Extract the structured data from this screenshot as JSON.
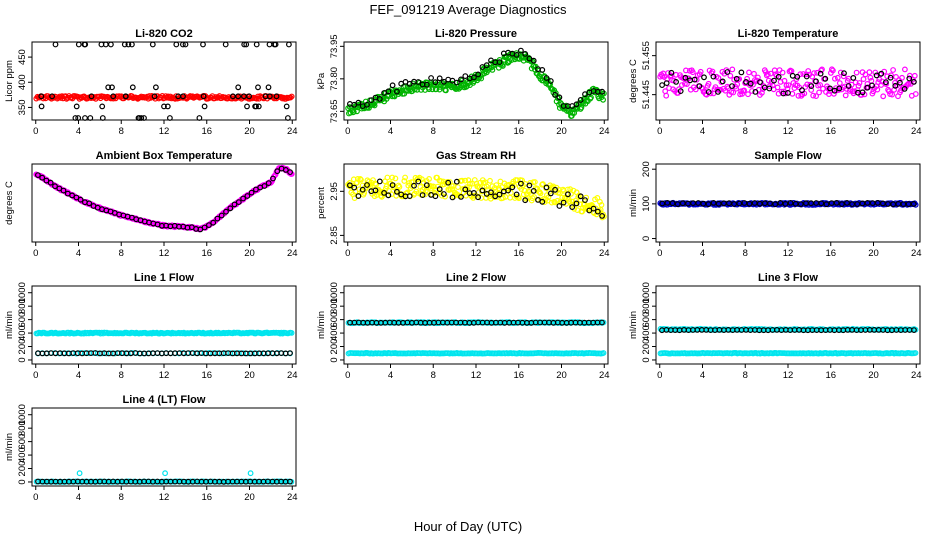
{
  "figure": {
    "title": "FEF_091219  Average Diagnostics",
    "xlabel": "Hour of Day (UTC)"
  },
  "chart_data": [
    {
      "type": "scatter",
      "title": "Li-820 CO2",
      "ylabel": "Licor ppm",
      "xlim": [
        0,
        24
      ],
      "xticks": [
        0,
        4,
        8,
        12,
        16,
        20,
        24
      ],
      "ylim": [
        325,
        480
      ],
      "yticks": [
        350,
        400,
        450
      ],
      "series": [
        {
          "color": "#ff0000",
          "pattern": "band",
          "center": 370,
          "spread": 3,
          "n": 220
        },
        {
          "color": "#000000",
          "pattern": "spikes",
          "levels": [
            325,
            352,
            372,
            390,
            475
          ],
          "n": 70
        }
      ]
    },
    {
      "type": "scatter",
      "title": "Li-820 Pressure",
      "ylabel": "kPa",
      "xlim": [
        0,
        24
      ],
      "xticks": [
        0,
        4,
        8,
        12,
        16,
        20,
        24
      ],
      "ylim": [
        73.61,
        73.97
      ],
      "yticks": [
        73.65,
        73.8,
        73.95
      ],
      "series": [
        {
          "color": "#00b400",
          "pattern": "curve",
          "spread": 0.02,
          "n": 320,
          "curve": {
            "x": [
              0,
              2,
              4,
              6,
              8,
              10,
              12,
              13,
              15,
              16,
              17,
              18,
              19,
              20,
              21,
              22,
              23,
              24
            ],
            "y": [
              73.65,
              73.68,
              73.73,
              73.76,
              73.77,
              73.76,
              73.8,
              73.84,
              73.89,
              73.91,
              73.88,
              73.82,
              73.76,
              73.67,
              73.64,
              73.69,
              73.74,
              73.72
            ]
          }
        },
        {
          "color": "#000000",
          "pattern": "curve",
          "spread": 0.018,
          "n": 60,
          "curve": {
            "x": [
              0,
              2,
              4,
              6,
              8,
              10,
              12,
              13,
              15,
              16,
              17,
              18,
              19,
              20,
              21,
              22,
              23,
              24
            ],
            "y": [
              73.67,
              73.7,
              73.75,
              73.78,
              73.79,
              73.78,
              73.82,
              73.86,
              73.91,
              73.93,
              73.9,
              73.84,
              73.78,
              73.69,
              73.66,
              73.71,
              73.76,
              73.74
            ]
          }
        }
      ]
    },
    {
      "type": "scatter",
      "title": "Li-820 Temperature",
      "ylabel": "degrees C",
      "xlim": [
        0,
        24
      ],
      "xticks": [
        0,
        4,
        8,
        12,
        16,
        20,
        24
      ],
      "ylim": [
        51.4385,
        51.4585
      ],
      "yticks": [
        51.445,
        51.455
      ],
      "series": [
        {
          "color": "#ff00ff",
          "pattern": "band",
          "center": 51.448,
          "spread": 0.0035,
          "n": 260
        },
        {
          "color": "#000000",
          "pattern": "band",
          "center": 51.448,
          "spread": 0.003,
          "n": 55
        }
      ]
    },
    {
      "type": "scatter",
      "title": "Ambient Box Temperature",
      "ylabel": "degrees C",
      "xlim": [
        0,
        24
      ],
      "xticks": [
        0,
        4,
        8,
        12,
        16,
        20,
        24
      ],
      "ylim": [
        51.5,
        58.2
      ],
      "yticks": [],
      "series": [
        {
          "color": "#ff00ff",
          "pattern": "curve",
          "spread": 0.08,
          "n": 300,
          "curve": {
            "x": [
              0,
              1,
              2,
              4,
              6,
              8,
              10,
              12,
              14,
              15.5,
              16.5,
              18,
              20,
              21,
              22,
              22.8,
              23.5,
              24
            ],
            "y": [
              57.4,
              56.8,
              56.2,
              55.2,
              54.4,
              53.8,
              53.3,
              52.9,
              52.8,
              52.6,
              53.1,
              54.3,
              55.6,
              56.2,
              56.6,
              57.9,
              57.7,
              57.3
            ]
          }
        },
        {
          "color": "#000000",
          "pattern": "curve",
          "spread": 0.05,
          "n": 60,
          "curve": {
            "x": [
              0,
              1,
              2,
              4,
              6,
              8,
              10,
              12,
              14,
              15.5,
              16.5,
              18,
              20,
              21,
              22,
              22.8,
              23.5,
              24
            ],
            "y": [
              57.4,
              56.8,
              56.2,
              55.2,
              54.4,
              53.8,
              53.3,
              52.9,
              52.8,
              52.6,
              53.1,
              54.3,
              55.6,
              56.2,
              56.6,
              57.9,
              57.7,
              57.3
            ]
          }
        }
      ]
    },
    {
      "type": "scatter",
      "title": "Gas Stream RH",
      "ylabel": "percent",
      "xlim": [
        0,
        24
      ],
      "xticks": [
        0,
        4,
        8,
        12,
        16,
        20,
        24
      ],
      "ylim": [
        2.835,
        3.012
      ],
      "yticks": [
        2.85,
        2.95
      ],
      "series": [
        {
          "color": "#ffff00",
          "pattern": "curve",
          "spread": 0.022,
          "n": 320,
          "curve": {
            "x": [
              0,
              4,
              8,
              12,
              16,
              20,
              22,
              24
            ],
            "y": [
              2.955,
              2.96,
              2.96,
              2.955,
              2.955,
              2.94,
              2.925,
              2.91
            ]
          }
        },
        {
          "color": "#000000",
          "pattern": "curve",
          "spread": 0.02,
          "n": 60,
          "curve": {
            "x": [
              0,
              4,
              8,
              12,
              16,
              20,
              22,
              24
            ],
            "y": [
              2.95,
              2.955,
              2.955,
              2.95,
              2.95,
              2.935,
              2.92,
              2.905
            ]
          }
        }
      ]
    },
    {
      "type": "scatter",
      "title": "Sample Flow",
      "ylabel": "ml/min",
      "xlim": [
        0,
        24
      ],
      "xticks": [
        0,
        4,
        8,
        12,
        16,
        20,
        24
      ],
      "ylim": [
        -10,
        215
      ],
      "yticks": [
        0,
        100,
        200
      ],
      "series": [
        {
          "color": "#0000cc",
          "pattern": "band",
          "center": 100,
          "spread": 3,
          "n": 240
        },
        {
          "color": "#000000",
          "pattern": "band",
          "center": 101,
          "spread": 2,
          "n": 50
        }
      ]
    },
    {
      "type": "scatter",
      "title": "Line 1 Flow",
      "ylabel": "ml/min",
      "xlim": [
        0,
        24
      ],
      "xticks": [
        0,
        4,
        8,
        12,
        16,
        20,
        24
      ],
      "ylim": [
        -60,
        1100
      ],
      "yticks": [
        0,
        200,
        400,
        600,
        800,
        1000
      ],
      "series": [
        {
          "color": "#00e5ee",
          "pattern": "band",
          "center": 400,
          "spread": 8,
          "n": 200
        },
        {
          "color": "#00e5ee",
          "pattern": "band",
          "center": 100,
          "spread": 5,
          "n": 60
        },
        {
          "color": "#000000",
          "pattern": "band",
          "center": 100,
          "spread": 3,
          "n": 58
        }
      ]
    },
    {
      "type": "scatter",
      "title": "Line 2 Flow",
      "ylabel": "ml/min",
      "xlim": [
        0,
        24
      ],
      "xticks": [
        0,
        4,
        8,
        12,
        16,
        20,
        24
      ],
      "ylim": [
        -60,
        1100
      ],
      "yticks": [
        0,
        200,
        400,
        600,
        800,
        1000
      ],
      "series": [
        {
          "color": "#00e5ee",
          "pattern": "band",
          "center": 555,
          "spread": 8,
          "n": 180
        },
        {
          "color": "#00e5ee",
          "pattern": "band",
          "center": 100,
          "spread": 5,
          "n": 180
        },
        {
          "color": "#000000",
          "pattern": "band",
          "center": 555,
          "spread": 3,
          "n": 58
        }
      ]
    },
    {
      "type": "scatter",
      "title": "Line 3 Flow",
      "ylabel": "ml/min",
      "xlim": [
        0,
        24
      ],
      "xticks": [
        0,
        4,
        8,
        12,
        16,
        20,
        24
      ],
      "ylim": [
        -60,
        1100
      ],
      "yticks": [
        0,
        200,
        400,
        600,
        800,
        1000
      ],
      "series": [
        {
          "color": "#00e5ee",
          "pattern": "band",
          "center": 455,
          "spread": 8,
          "n": 180
        },
        {
          "color": "#00e5ee",
          "pattern": "band",
          "center": 100,
          "spread": 5,
          "n": 180
        },
        {
          "color": "#000000",
          "pattern": "band",
          "center": 445,
          "spread": 3,
          "n": 58
        }
      ]
    },
    {
      "type": "scatter",
      "title": "Line 4 (LT) Flow",
      "ylabel": "ml/min",
      "xlim": [
        0,
        24
      ],
      "xticks": [
        0,
        4,
        8,
        12,
        16,
        20,
        24
      ],
      "ylim": [
        -60,
        1100
      ],
      "yticks": [
        0,
        200,
        400,
        600,
        800,
        1000
      ],
      "series": [
        {
          "color": "#00e5ee",
          "pattern": "band",
          "center": 5,
          "spread": 4,
          "n": 150
        },
        {
          "color": "#000000",
          "pattern": "band",
          "center": 5,
          "spread": 2,
          "n": 58
        },
        {
          "color": "#00e5ee",
          "pattern": "points",
          "x": [
            4.1,
            12.1,
            20.1
          ],
          "y": [
            130,
            130,
            130
          ]
        }
      ]
    }
  ]
}
